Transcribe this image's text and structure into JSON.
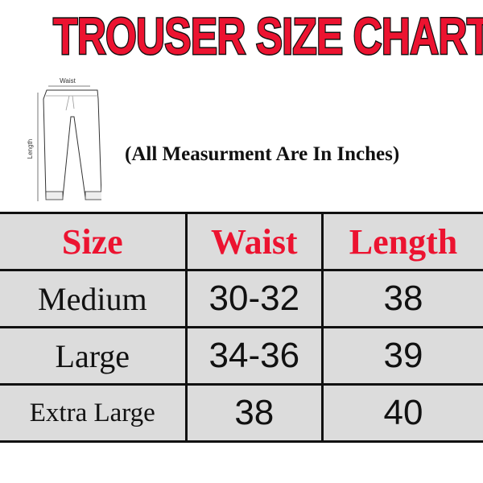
{
  "title": "TROUSER SIZE CHART",
  "diagram": {
    "waist_label": "Waist",
    "length_label": "Length"
  },
  "note": "(All Measurment Are In Inches)",
  "table": {
    "headers": [
      "Size",
      "Waist",
      "Length"
    ],
    "rows": [
      {
        "size": "Medium",
        "waist": "30-32",
        "length": "38"
      },
      {
        "size": "Large",
        "waist": "34-36",
        "length": "39"
      },
      {
        "size": "Extra Large",
        "waist": "38",
        "length": "40"
      }
    ]
  },
  "colors": {
    "accent": "#ec1330",
    "cell_bg": "#dcdcdc"
  }
}
